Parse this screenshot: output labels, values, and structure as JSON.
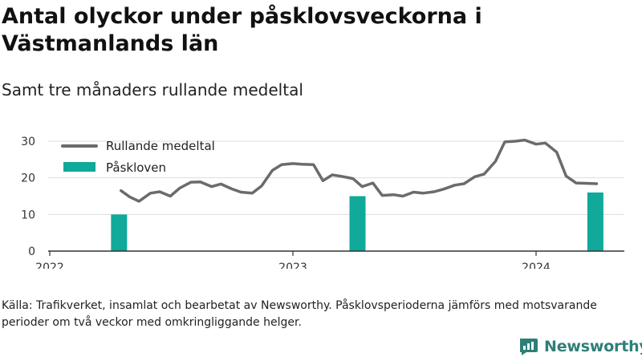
{
  "title": "Antal olyckor under påsklovsveckorna i Västmanlands län",
  "subtitle": "Samt tre månaders rullande medeltal",
  "source": "Källa: Trafikverket, insamlat och bearbetat av Newsworthy. Påsklovsperioderna jämförs med motsvarande perioder om två veckor med omkringliggande helger.",
  "brand": "Newsworthy",
  "colors": {
    "line": "#6b6b6b",
    "bar": "#10a99a",
    "grid": "#dddddd",
    "axis": "#333333",
    "brand": "#2f7f79"
  },
  "chart_data": {
    "type": "bar+line",
    "title": "Antal olyckor under påsklovsveckorna i Västmanlands län",
    "subtitle": "Samt tre månaders rullande medeltal",
    "x_ticks": [
      "2022",
      "2023",
      "2024"
    ],
    "y_ticks": [
      0,
      10,
      20,
      30
    ],
    "ylim": [
      0,
      32
    ],
    "xlim": [
      "2022-01-01",
      "2024-05-15"
    ],
    "grid": true,
    "legend_position": "top-left",
    "legend": [
      "Rullande medeltal",
      "Påskloven"
    ],
    "series": [
      {
        "name": "Rullande medeltal",
        "type": "line",
        "x": [
          "2022-04-18",
          "2022-05-01",
          "2022-05-15",
          "2022-06-01",
          "2022-06-15",
          "2022-07-01",
          "2022-07-15",
          "2022-08-01",
          "2022-08-15",
          "2022-09-01",
          "2022-09-15",
          "2022-10-01",
          "2022-10-15",
          "2022-11-01",
          "2022-11-15",
          "2022-12-01",
          "2022-12-15",
          "2023-01-01",
          "2023-01-15",
          "2023-02-01",
          "2023-02-15",
          "2023-03-01",
          "2023-03-15",
          "2023-04-01",
          "2023-04-15",
          "2023-05-01",
          "2023-05-15",
          "2023-06-01",
          "2023-06-15",
          "2023-07-01",
          "2023-07-15",
          "2023-08-01",
          "2023-08-15",
          "2023-09-01",
          "2023-09-15",
          "2023-10-01",
          "2023-10-15",
          "2023-11-01",
          "2023-11-15",
          "2023-12-01",
          "2023-12-15",
          "2024-01-01",
          "2024-01-15",
          "2024-02-01",
          "2024-02-15",
          "2024-03-01",
          "2024-03-15",
          "2024-04-01"
        ],
        "values": [
          16.5,
          14.8,
          13.6,
          15.8,
          16.2,
          15.0,
          17.2,
          18.8,
          18.9,
          17.6,
          18.3,
          17.0,
          16.1,
          15.8,
          17.8,
          22.0,
          23.6,
          23.9,
          23.7,
          23.6,
          19.2,
          20.8,
          20.4,
          19.8,
          17.6,
          18.6,
          15.2,
          15.4,
          15.0,
          16.1,
          15.8,
          16.2,
          16.9,
          18.0,
          18.4,
          20.3,
          21.0,
          24.5,
          29.8,
          30.0,
          30.3,
          29.2,
          29.5,
          27.0,
          20.5,
          18.6,
          18.5,
          18.4
        ]
      },
      {
        "name": "Påskloven",
        "type": "bar",
        "x": [
          "2022-04-15",
          "2023-04-08",
          "2024-03-30"
        ],
        "values": [
          10,
          15,
          16
        ]
      }
    ]
  }
}
